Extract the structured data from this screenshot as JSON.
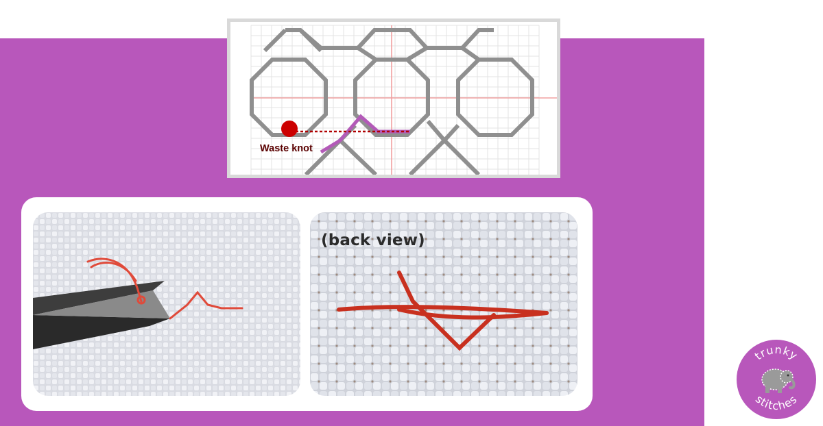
{
  "diagram": {
    "knot_label": "Waste knot",
    "colors": {
      "grid": "#e3e3e3",
      "center_lines": "#f2a0a0",
      "outline": "#8f8f8f",
      "stitch": "#b35ab8",
      "knot": "#cc0000",
      "knot_text": "#5a0000"
    }
  },
  "photos": {
    "back_label": "(back view)"
  },
  "logo": {
    "top_text": "trunky",
    "bottom_text": "stitches",
    "icon": "elephant-icon"
  }
}
